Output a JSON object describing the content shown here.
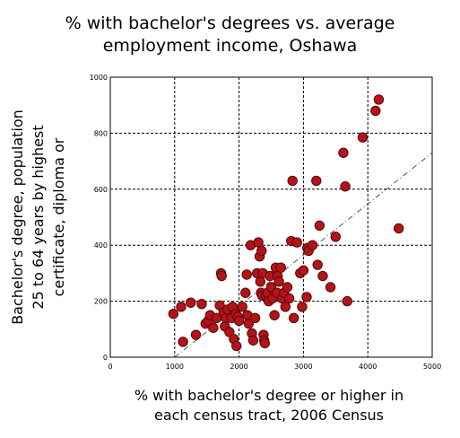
{
  "chart_data": {
    "type": "scatter",
    "title_lines": [
      "% with bachelor's degrees vs. average",
      "employment income, Oshawa"
    ],
    "xlabel_lines": [
      "% with bachelor's degree or higher in",
      "each census tract, 2006 Census"
    ],
    "ylabel_lines": [
      "Bachelor's degree, population",
      "25 to 64 years by highest",
      "certificate, diploma or"
    ],
    "xlim": [
      0,
      5000
    ],
    "ylim": [
      0,
      1000
    ],
    "x_ticks": [
      "0",
      "1000",
      "2000",
      "3000",
      "4000",
      "5000"
    ],
    "y_ticks": [
      "0",
      "200",
      "400",
      "600",
      "800",
      "1000"
    ],
    "grid": true,
    "marker_color": "#b3141a",
    "trendline": {
      "from": [
        1000,
        0
      ],
      "to": [
        5000,
        730
      ]
    },
    "points": [
      [
        980,
        155
      ],
      [
        1100,
        180
      ],
      [
        1130,
        55
      ],
      [
        1250,
        195
      ],
      [
        1330,
        80
      ],
      [
        1420,
        190
      ],
      [
        1480,
        120
      ],
      [
        1520,
        130
      ],
      [
        1550,
        150
      ],
      [
        1600,
        105
      ],
      [
        1650,
        140
      ],
      [
        1700,
        185
      ],
      [
        1720,
        300
      ],
      [
        1730,
        290
      ],
      [
        1760,
        160
      ],
      [
        1780,
        110
      ],
      [
        1800,
        140
      ],
      [
        1820,
        170
      ],
      [
        1850,
        90
      ],
      [
        1880,
        140
      ],
      [
        1900,
        180
      ],
      [
        1920,
        65
      ],
      [
        1950,
        155
      ],
      [
        1960,
        40
      ],
      [
        1980,
        145
      ],
      [
        2000,
        130
      ],
      [
        2050,
        180
      ],
      [
        2100,
        230
      ],
      [
        2120,
        295
      ],
      [
        2130,
        150
      ],
      [
        2150,
        120
      ],
      [
        2180,
        400
      ],
      [
        2200,
        85
      ],
      [
        2220,
        60
      ],
      [
        2250,
        140
      ],
      [
        2280,
        300
      ],
      [
        2300,
        410
      ],
      [
        2320,
        360
      ],
      [
        2330,
        270
      ],
      [
        2340,
        230
      ],
      [
        2350,
        380
      ],
      [
        2360,
        220
      ],
      [
        2370,
        300
      ],
      [
        2380,
        80
      ],
      [
        2390,
        60
      ],
      [
        2400,
        50
      ],
      [
        2420,
        220
      ],
      [
        2440,
        230
      ],
      [
        2460,
        200
      ],
      [
        2480,
        290
      ],
      [
        2500,
        250
      ],
      [
        2520,
        210
      ],
      [
        2550,
        150
      ],
      [
        2570,
        320
      ],
      [
        2590,
        230
      ],
      [
        2600,
        290
      ],
      [
        2620,
        270
      ],
      [
        2650,
        320
      ],
      [
        2670,
        210
      ],
      [
        2700,
        230
      ],
      [
        2720,
        180
      ],
      [
        2750,
        250
      ],
      [
        2780,
        210
      ],
      [
        2810,
        415
      ],
      [
        2830,
        630
      ],
      [
        2850,
        140
      ],
      [
        2900,
        410
      ],
      [
        2950,
        300
      ],
      [
        2980,
        180
      ],
      [
        3000,
        310
      ],
      [
        3050,
        215
      ],
      [
        3060,
        390
      ],
      [
        3080,
        380
      ],
      [
        3140,
        400
      ],
      [
        3200,
        630
      ],
      [
        3220,
        330
      ],
      [
        3250,
        470
      ],
      [
        3300,
        290
      ],
      [
        3420,
        250
      ],
      [
        3500,
        430
      ],
      [
        3620,
        730
      ],
      [
        3650,
        610
      ],
      [
        3680,
        200
      ],
      [
        3920,
        785
      ],
      [
        4120,
        880
      ],
      [
        4170,
        920
      ],
      [
        4480,
        460
      ]
    ]
  }
}
